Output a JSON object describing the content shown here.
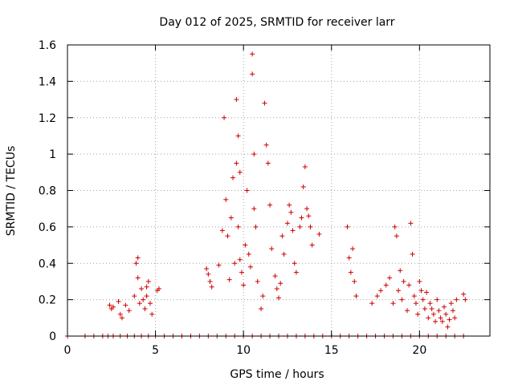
{
  "chart_data": {
    "type": "scatter",
    "title": "Day 012 of 2025, SRMTID for receiver larr",
    "xlabel": "GPS time / hours",
    "ylabel": "SRMTID / TECUs",
    "xlim": [
      0,
      24
    ],
    "ylim": [
      0,
      1.6
    ],
    "xticks": [
      0,
      5,
      10,
      15,
      20
    ],
    "xtick_labels": [
      "0",
      "5",
      "10",
      "15",
      "20"
    ],
    "yticks": [
      0,
      0.2,
      0.4,
      0.6,
      0.8,
      1.0,
      1.2,
      1.4,
      1.6
    ],
    "ytick_labels": [
      "0",
      "0.2",
      "0.4",
      "0.6",
      "0.8",
      "1",
      "1.2",
      "1.4",
      "1.6"
    ],
    "grid": true,
    "marker": "+",
    "color": "#cc0000",
    "series": [
      {
        "name": "SRMTID",
        "x": [
          2.4,
          2.5,
          2.6,
          2.9,
          3.0,
          3.1,
          3.3,
          3.5,
          3.8,
          3.9,
          4.0,
          4.0,
          4.1,
          4.2,
          4.3,
          4.4,
          4.5,
          4.5,
          4.6,
          4.7,
          4.8,
          5.1,
          5.2,
          7.9,
          8.0,
          8.1,
          8.2,
          8.6,
          8.8,
          8.9,
          9.0,
          9.1,
          9.2,
          9.3,
          9.4,
          9.5,
          9.6,
          9.6,
          9.7,
          9.7,
          9.8,
          9.8,
          9.9,
          10.0,
          10.1,
          10.2,
          10.3,
          10.4,
          10.5,
          10.5,
          10.6,
          10.6,
          10.7,
          10.8,
          11.0,
          11.1,
          11.2,
          11.3,
          11.4,
          11.5,
          11.6,
          11.8,
          11.9,
          12.0,
          12.1,
          12.2,
          12.3,
          12.5,
          12.6,
          12.7,
          12.8,
          12.9,
          13.0,
          13.2,
          13.3,
          13.4,
          13.5,
          13.6,
          13.7,
          13.8,
          13.9,
          14.3,
          15.9,
          16.0,
          16.1,
          16.2,
          16.3,
          16.4,
          17.3,
          17.6,
          17.8,
          18.1,
          18.3,
          18.5,
          18.6,
          18.7,
          18.8,
          18.9,
          19.0,
          19.1,
          19.3,
          19.4,
          19.5,
          19.6,
          19.7,
          19.8,
          19.9,
          20.0,
          20.1,
          20.2,
          20.3,
          20.4,
          20.5,
          20.6,
          20.7,
          20.8,
          20.9,
          21.0,
          21.1,
          21.2,
          21.3,
          21.4,
          21.5,
          21.6,
          21.7,
          21.8,
          21.9,
          22.0,
          22.1,
          22.5,
          22.6,
          0.0,
          1.0,
          1.5,
          2.0,
          2.3,
          2.6,
          3.0,
          3.4,
          3.8,
          4.2,
          4.6,
          5.0,
          5.5,
          6.0,
          6.5,
          7.0,
          7.5,
          8.0,
          8.5,
          9.0,
          9.5,
          10.0,
          10.5,
          11.0,
          11.5,
          12.0,
          12.5,
          13.0,
          13.5,
          14.0,
          14.5,
          15.0,
          15.5,
          16.0,
          16.5,
          17.0,
          17.5,
          18.0,
          18.5,
          19.0,
          19.5,
          20.0,
          20.5,
          21.0,
          21.5,
          22.0,
          22.5
        ],
        "y": [
          0.17,
          0.15,
          0.16,
          0.19,
          0.12,
          0.1,
          0.17,
          0.14,
          0.22,
          0.4,
          0.43,
          0.32,
          0.18,
          0.26,
          0.2,
          0.15,
          0.27,
          0.22,
          0.3,
          0.18,
          0.12,
          0.25,
          0.26,
          0.37,
          0.34,
          0.3,
          0.27,
          0.39,
          0.58,
          1.2,
          0.75,
          0.55,
          0.31,
          0.65,
          0.87,
          0.4,
          1.3,
          0.95,
          1.1,
          0.6,
          0.9,
          0.42,
          0.35,
          0.28,
          0.5,
          0.8,
          0.45,
          0.38,
          1.55,
          1.44,
          0.7,
          1.0,
          0.6,
          0.3,
          0.15,
          0.22,
          1.28,
          1.05,
          0.95,
          0.72,
          0.48,
          0.33,
          0.26,
          0.21,
          0.29,
          0.55,
          0.45,
          0.62,
          0.72,
          0.68,
          0.58,
          0.4,
          0.35,
          0.6,
          0.65,
          0.82,
          0.93,
          0.7,
          0.66,
          0.6,
          0.5,
          0.56,
          0.6,
          0.43,
          0.35,
          0.48,
          0.3,
          0.22,
          0.18,
          0.22,
          0.25,
          0.28,
          0.32,
          0.18,
          0.6,
          0.55,
          0.25,
          0.36,
          0.2,
          0.3,
          0.14,
          0.28,
          0.62,
          0.45,
          0.22,
          0.18,
          0.12,
          0.3,
          0.25,
          0.2,
          0.15,
          0.24,
          0.1,
          0.18,
          0.15,
          0.12,
          0.08,
          0.2,
          0.14,
          0.1,
          0.08,
          0.16,
          0.12,
          0.05,
          0.09,
          0.18,
          0.14,
          0.1,
          0.2,
          0.23,
          0.2,
          0,
          0,
          0,
          0,
          0,
          0,
          0,
          0,
          0,
          0,
          0,
          0,
          0,
          0,
          0,
          0,
          0,
          0,
          0,
          0,
          0,
          0,
          0,
          0,
          0,
          0,
          0,
          0,
          0,
          0,
          0,
          0,
          0,
          0,
          0,
          0,
          0,
          0,
          0,
          0,
          0,
          0,
          0,
          0,
          0,
          0,
          0
        ]
      }
    ]
  }
}
